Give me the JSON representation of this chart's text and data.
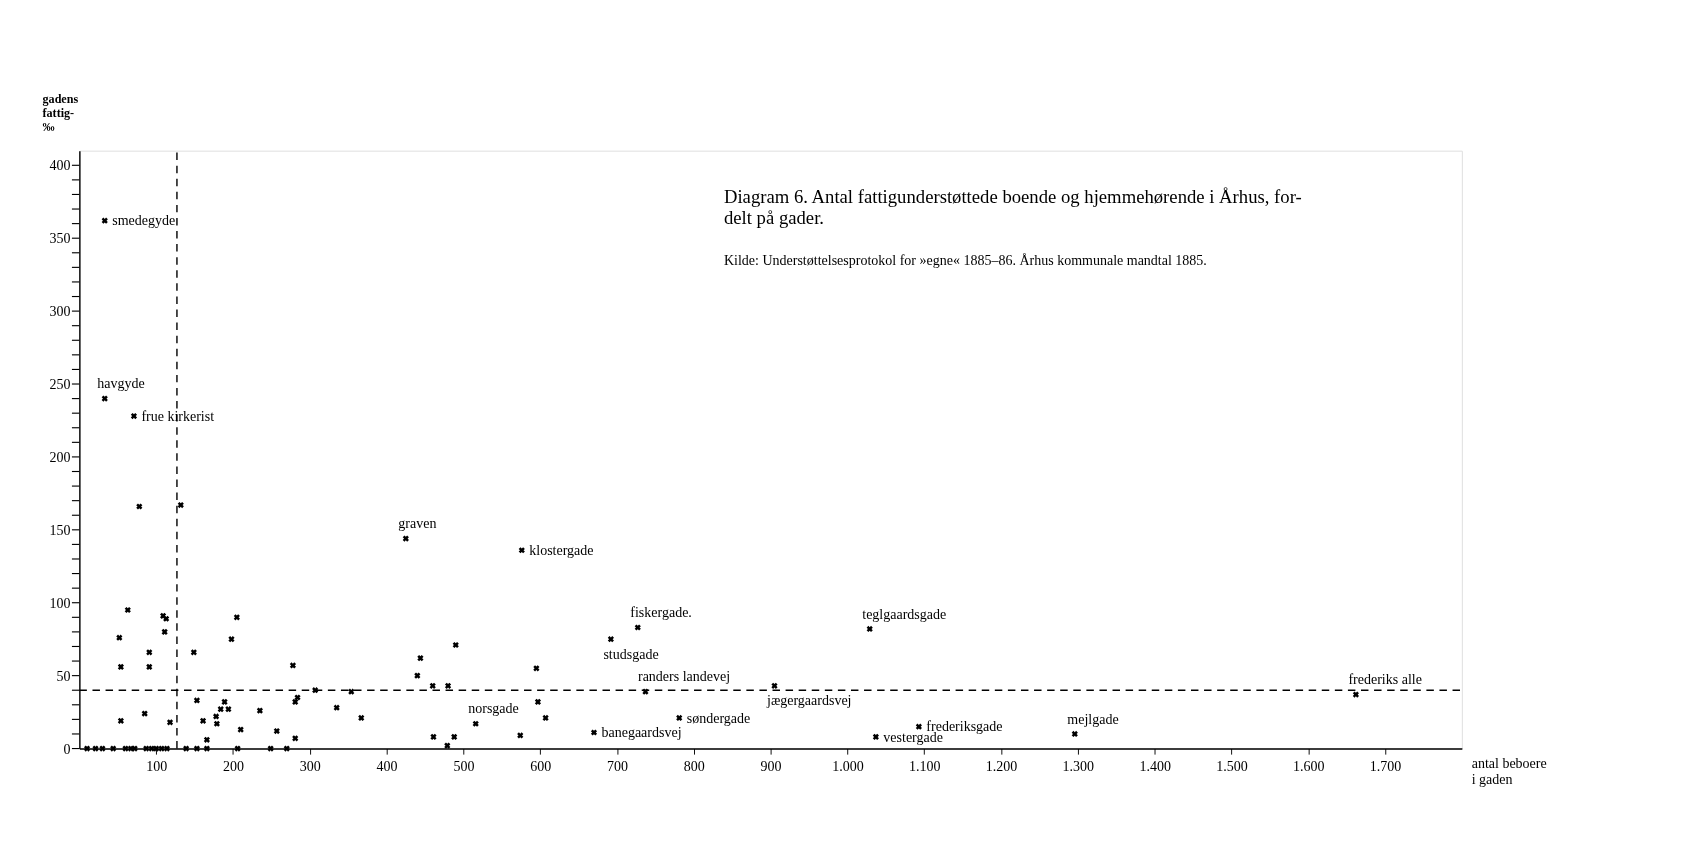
{
  "chart_data": {
    "type": "scatter",
    "title": "Diagram 6.  Antal fattigunderstøttede boende og hjemmehørende i Århus, for-\ndelt på gader.",
    "xlabel": "antal beboere\ni gaden",
    "ylabel": "gadens\nfattig-\n‰",
    "x": [
      33,
      33,
      71,
      78,
      132,
      63,
      52,
      54,
      91,
      91,
      109,
      113,
      111,
      54,
      85,
      118,
      149,
      198,
      205,
      153,
      161,
      166,
      179,
      178,
      184,
      189,
      194,
      210,
      235,
      257,
      278,
      281,
      284,
      281,
      307,
      335,
      354,
      367,
      10,
      21,
      30,
      44,
      60,
      67,
      72,
      87,
      94,
      100,
      107,
      114,
      139,
      153,
      166,
      206,
      249,
      270,
      425,
      576,
      727,
      692,
      490,
      444,
      440,
      595,
      460,
      480,
      737,
      905,
      597,
      607,
      781,
      516,
      574,
      670,
      461,
      488,
      479,
      1029,
      1662,
      1093,
      1037,
      1296
    ],
    "values": [
      362,
      240,
      228,
      166,
      167,
      95,
      76,
      56,
      66,
      56,
      91,
      89,
      80,
      19,
      24,
      18,
      66,
      75,
      90,
      33,
      19,
      6,
      17,
      22,
      27,
      32,
      27,
      13,
      26,
      12,
      57,
      32,
      35,
      7,
      40,
      28,
      39,
      21,
      0,
      0,
      0,
      0,
      0,
      0,
      0,
      0,
      0,
      0,
      0,
      0,
      0,
      0,
      0,
      0,
      0,
      0,
      144,
      136,
      83,
      75,
      71,
      62,
      50,
      55,
      43,
      43,
      39,
      43,
      32,
      21,
      21,
      17,
      9,
      11,
      8,
      8,
      2,
      82,
      37,
      15,
      8,
      10
    ],
    "color": "#000000",
    "marker": "cross",
    "xlim": [
      0,
      1800
    ],
    "xticks": [
      100,
      200,
      300,
      400,
      500,
      600,
      700,
      800,
      900,
      {
        "value": 1000,
        "label": "1.000"
      },
      {
        "value": 1100,
        "label": "1.100"
      },
      {
        "value": 1200,
        "label": "1.200"
      },
      {
        "value": 1300,
        "label": "1.300"
      },
      {
        "value": 1400,
        "label": "1.400"
      },
      {
        "value": 1500,
        "label": "1.500"
      },
      {
        "value": 1600,
        "label": "1.600"
      },
      {
        "value": 1700,
        "label": "1.700"
      }
    ],
    "ylim": [
      0,
      410
    ],
    "yticks": [
      0,
      {
        "value": 10,
        "label": null
      },
      {
        "value": 20,
        "label": null
      },
      {
        "value": 30,
        "label": null
      },
      {
        "value": 40,
        "label": null
      },
      50,
      {
        "value": 60,
        "label": null
      },
      {
        "value": 70,
        "label": null
      },
      {
        "value": 80,
        "label": null
      },
      {
        "value": 90,
        "label": null
      },
      100,
      {
        "value": 110,
        "label": null
      },
      {
        "value": 120,
        "label": null
      },
      {
        "value": 130,
        "label": null
      },
      {
        "value": 140,
        "label": null
      },
      150,
      {
        "value": 160,
        "label": null
      },
      {
        "value": 170,
        "label": null
      },
      {
        "value": 180,
        "label": null
      },
      {
        "value": 190,
        "label": null
      },
      200,
      {
        "value": 210,
        "label": null
      },
      {
        "value": 220,
        "label": null
      },
      {
        "value": 230,
        "label": null
      },
      {
        "value": 240,
        "label": null
      },
      250,
      {
        "value": 260,
        "label": null
      },
      {
        "value": 270,
        "label": null
      },
      {
        "value": 280,
        "label": null
      },
      {
        "value": 290,
        "label": null
      },
      300,
      {
        "value": 310,
        "label": null
      },
      {
        "value": 320,
        "label": null
      },
      {
        "value": 330,
        "label": null
      },
      {
        "value": 340,
        "label": null
      },
      350,
      {
        "value": 360,
        "label": null
      },
      {
        "value": 370,
        "label": null
      },
      {
        "value": 380,
        "label": null
      },
      {
        "value": 390,
        "label": null
      },
      400
    ],
    "grid": false,
    "ref_lines": [
      {
        "axis": "y",
        "value": 40,
        "line_style": "dashed"
      },
      {
        "axis": "x",
        "value": 127,
        "line_style": "dashed"
      }
    ],
    "annotations": [
      "Kilde: Understøttelsesprotokol for »egne« 1885–86. Århus kommunale mandtal 1885.",
      {
        "text": "smedegyde",
        "x": 33,
        "y": 362
      },
      {
        "text": "havgyde",
        "x": 33,
        "y": 240
      },
      {
        "text": "frue kirkerist",
        "x": 71,
        "y": 228
      },
      {
        "text": "graven",
        "x": 425,
        "y": 144
      },
      {
        "text": "klostergade",
        "x": 576,
        "y": 136
      },
      {
        "text": "fiskergade.",
        "x": 727,
        "y": 83
      },
      {
        "text": "studsgade",
        "x": 692,
        "y": 75
      },
      {
        "text": "randers landevej",
        "x": 737,
        "y": 39
      },
      {
        "text": "jægergaardsvej",
        "x": 905,
        "y": 43
      },
      {
        "text": "søndergade",
        "x": 781,
        "y": 21
      },
      {
        "text": "norsgade",
        "x": 516,
        "y": 17
      },
      {
        "text": "banegaardsvej",
        "x": 670,
        "y": 11
      },
      {
        "text": "teglgaardsgade",
        "x": 1029,
        "y": 82
      },
      {
        "text": "frederiks alle",
        "x": 1662,
        "y": 37
      },
      {
        "text": "frederiksgade",
        "x": 1093,
        "y": 15
      },
      {
        "text": "vestergade",
        "x": 1037,
        "y": 8
      },
      {
        "text": "mejlgade",
        "x": 1296,
        "y": 10
      }
    ]
  }
}
